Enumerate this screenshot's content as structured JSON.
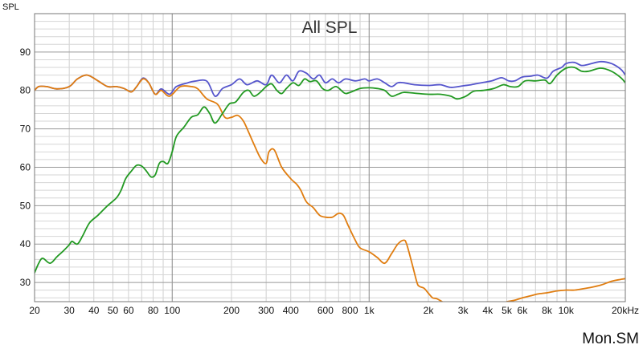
{
  "chart_data": {
    "type": "line",
    "title": "All SPL",
    "ylabel": "SPL",
    "xlabel": "",
    "x_scale": "log",
    "xlim": [
      20,
      20000
    ],
    "ylim": [
      25,
      100
    ],
    "grid": true,
    "watermark": "Mon.SM",
    "y_ticks": [
      30,
      40,
      50,
      60,
      70,
      80,
      90
    ],
    "x_ticks": [
      {
        "v": 20,
        "label": "20"
      },
      {
        "v": 30,
        "label": "30"
      },
      {
        "v": 40,
        "label": "40"
      },
      {
        "v": 50,
        "label": "50"
      },
      {
        "v": 60,
        "label": "60"
      },
      {
        "v": 80,
        "label": "80"
      },
      {
        "v": 100,
        "label": "100"
      },
      {
        "v": 200,
        "label": "200"
      },
      {
        "v": 300,
        "label": "300"
      },
      {
        "v": 400,
        "label": "400"
      },
      {
        "v": 600,
        "label": "600"
      },
      {
        "v": 800,
        "label": "800"
      },
      {
        "v": 1000,
        "label": "1k"
      },
      {
        "v": 2000,
        "label": "2k"
      },
      {
        "v": 3000,
        "label": "3k"
      },
      {
        "v": 4000,
        "label": "4k"
      },
      {
        "v": 5000,
        "label": "5k"
      },
      {
        "v": 6000,
        "label": "6k"
      },
      {
        "v": 8000,
        "label": "8k"
      },
      {
        "v": 10000,
        "label": "10k"
      },
      {
        "v": 20000,
        "label": "20kHz"
      }
    ],
    "series": [
      {
        "color": "#5555cc",
        "points": [
          [
            20,
            80
          ],
          [
            21,
            81
          ],
          [
            23,
            81
          ],
          [
            26,
            80.4
          ],
          [
            30,
            81
          ],
          [
            33,
            83
          ],
          [
            37,
            84
          ],
          [
            42,
            82.5
          ],
          [
            47,
            81
          ],
          [
            52,
            81
          ],
          [
            57,
            80.5
          ],
          [
            62,
            79.6
          ],
          [
            66,
            81
          ],
          [
            71,
            83.2
          ],
          [
            76,
            82
          ],
          [
            82,
            79
          ],
          [
            88,
            80.4
          ],
          [
            97,
            79
          ],
          [
            105,
            81
          ],
          [
            120,
            82
          ],
          [
            130,
            82.4
          ],
          [
            150,
            82.4
          ],
          [
            165,
            78.5
          ],
          [
            180,
            80.5
          ],
          [
            200,
            81.5
          ],
          [
            220,
            83
          ],
          [
            240,
            81.5
          ],
          [
            270,
            82.5
          ],
          [
            300,
            81.5
          ],
          [
            320,
            84
          ],
          [
            350,
            82
          ],
          [
            380,
            84
          ],
          [
            410,
            82.5
          ],
          [
            440,
            85
          ],
          [
            480,
            84.5
          ],
          [
            520,
            83
          ],
          [
            560,
            84
          ],
          [
            600,
            82
          ],
          [
            650,
            83
          ],
          [
            700,
            82
          ],
          [
            760,
            83
          ],
          [
            850,
            82.5
          ],
          [
            950,
            83
          ],
          [
            1000,
            82.5
          ],
          [
            1100,
            83
          ],
          [
            1200,
            82
          ],
          [
            1300,
            81
          ],
          [
            1400,
            82
          ],
          [
            1500,
            82
          ],
          [
            1700,
            81.5
          ],
          [
            2000,
            81.3
          ],
          [
            2300,
            81.5
          ],
          [
            2600,
            80.8
          ],
          [
            3000,
            81.2
          ],
          [
            3300,
            81.5
          ],
          [
            3700,
            82
          ],
          [
            4200,
            82.5
          ],
          [
            4700,
            83.3
          ],
          [
            5100,
            82.5
          ],
          [
            5500,
            82.5
          ],
          [
            6000,
            83.5
          ],
          [
            6600,
            83.7
          ],
          [
            7200,
            84
          ],
          [
            8000,
            83.2
          ],
          [
            8600,
            85
          ],
          [
            9500,
            86
          ],
          [
            10000,
            87
          ],
          [
            11000,
            87.3
          ],
          [
            12000,
            86.5
          ],
          [
            13000,
            86.8
          ],
          [
            15000,
            87.5
          ],
          [
            17000,
            87
          ],
          [
            19000,
            85.5
          ],
          [
            20000,
            84
          ]
        ]
      },
      {
        "color": "#e07d10",
        "points": [
          [
            20,
            80
          ],
          [
            21,
            81
          ],
          [
            23,
            81
          ],
          [
            26,
            80.4
          ],
          [
            30,
            81
          ],
          [
            33,
            83
          ],
          [
            37,
            84
          ],
          [
            42,
            82.5
          ],
          [
            47,
            81
          ],
          [
            52,
            81
          ],
          [
            57,
            80.5
          ],
          [
            62,
            79.6
          ],
          [
            66,
            81
          ],
          [
            71,
            83
          ],
          [
            76,
            82
          ],
          [
            82,
            79
          ],
          [
            88,
            80
          ],
          [
            97,
            78.5
          ],
          [
            110,
            81
          ],
          [
            125,
            81
          ],
          [
            135,
            80.4
          ],
          [
            150,
            77.8
          ],
          [
            170,
            76.4
          ],
          [
            185,
            73
          ],
          [
            200,
            73
          ],
          [
            215,
            73.5
          ],
          [
            230,
            72
          ],
          [
            245,
            69
          ],
          [
            260,
            66
          ],
          [
            280,
            62.5
          ],
          [
            300,
            61
          ],
          [
            310,
            64
          ],
          [
            330,
            64.5
          ],
          [
            360,
            60
          ],
          [
            400,
            57
          ],
          [
            430,
            55.5
          ],
          [
            450,
            54
          ],
          [
            480,
            51
          ],
          [
            520,
            49.5
          ],
          [
            560,
            47.5
          ],
          [
            600,
            47
          ],
          [
            650,
            47
          ],
          [
            700,
            48
          ],
          [
            740,
            47.5
          ],
          [
            780,
            45
          ],
          [
            850,
            41
          ],
          [
            900,
            39
          ],
          [
            1000,
            38
          ],
          [
            1100,
            36.5
          ],
          [
            1200,
            35
          ],
          [
            1300,
            37.5
          ],
          [
            1400,
            40
          ],
          [
            1500,
            41
          ],
          [
            1550,
            40
          ],
          [
            1650,
            35
          ],
          [
            1750,
            30
          ],
          [
            1800,
            29
          ],
          [
            1900,
            28.5
          ],
          [
            2000,
            27.2
          ],
          [
            2100,
            26
          ],
          [
            2200,
            25.8
          ],
          [
            2350,
            25
          ]
        ]
      },
      {
        "color": "#e07d10",
        "points": [
          [
            5000,
            25
          ],
          [
            5500,
            25.4
          ],
          [
            6000,
            26
          ],
          [
            6600,
            26.5
          ],
          [
            7200,
            27
          ],
          [
            8000,
            27.3
          ],
          [
            9000,
            27.8
          ],
          [
            10000,
            28
          ],
          [
            11000,
            28
          ],
          [
            12000,
            28.3
          ],
          [
            13000,
            28.6
          ],
          [
            15000,
            29.3
          ],
          [
            17000,
            30.3
          ],
          [
            19000,
            30.8
          ],
          [
            20000,
            31
          ]
        ]
      },
      {
        "color": "#229922",
        "points": [
          [
            20,
            32.5
          ],
          [
            21,
            35
          ],
          [
            22,
            36.3
          ],
          [
            24,
            35
          ],
          [
            26,
            36.7
          ],
          [
            28,
            38.2
          ],
          [
            30,
            39.8
          ],
          [
            31,
            40.7
          ],
          [
            33,
            40
          ],
          [
            35,
            42
          ],
          [
            38,
            45.5
          ],
          [
            42,
            47.5
          ],
          [
            47,
            50
          ],
          [
            52,
            52
          ],
          [
            55,
            54
          ],
          [
            58,
            57
          ],
          [
            62,
            59
          ],
          [
            66,
            60.5
          ],
          [
            70,
            60.3
          ],
          [
            74,
            59
          ],
          [
            78,
            57.5
          ],
          [
            82,
            58
          ],
          [
            86,
            61
          ],
          [
            90,
            61.5
          ],
          [
            95,
            61
          ],
          [
            100,
            64
          ],
          [
            105,
            68
          ],
          [
            115,
            70.5
          ],
          [
            125,
            73
          ],
          [
            135,
            73.7
          ],
          [
            145,
            75.7
          ],
          [
            155,
            74
          ],
          [
            165,
            71.5
          ],
          [
            180,
            74
          ],
          [
            195,
            76.5
          ],
          [
            210,
            77
          ],
          [
            230,
            79.5
          ],
          [
            245,
            80
          ],
          [
            260,
            78.5
          ],
          [
            280,
            79.5
          ],
          [
            300,
            81
          ],
          [
            320,
            81.7
          ],
          [
            340,
            80
          ],
          [
            360,
            79.2
          ],
          [
            380,
            80.5
          ],
          [
            410,
            82
          ],
          [
            440,
            81.3
          ],
          [
            470,
            83
          ],
          [
            500,
            82.3
          ],
          [
            540,
            82.5
          ],
          [
            580,
            80.5
          ],
          [
            620,
            80
          ],
          [
            680,
            81
          ],
          [
            750,
            79.3
          ],
          [
            800,
            79.5
          ],
          [
            900,
            80.5
          ],
          [
            1000,
            80.7
          ],
          [
            1100,
            80.5
          ],
          [
            1200,
            80
          ],
          [
            1300,
            78.5
          ],
          [
            1400,
            79
          ],
          [
            1500,
            79.5
          ],
          [
            1700,
            79.3
          ],
          [
            2000,
            79
          ],
          [
            2300,
            79
          ],
          [
            2600,
            78.5
          ],
          [
            2800,
            77.8
          ],
          [
            3100,
            78.5
          ],
          [
            3400,
            79.8
          ],
          [
            3800,
            80
          ],
          [
            4300,
            80.5
          ],
          [
            4800,
            81.5
          ],
          [
            5200,
            81
          ],
          [
            5700,
            81
          ],
          [
            6200,
            82.5
          ],
          [
            7000,
            82.5
          ],
          [
            7800,
            82.7
          ],
          [
            8300,
            81.8
          ],
          [
            9000,
            84
          ],
          [
            10000,
            85.8
          ],
          [
            11000,
            86
          ],
          [
            12000,
            85
          ],
          [
            13000,
            85
          ],
          [
            15000,
            85.8
          ],
          [
            17000,
            85
          ],
          [
            19000,
            83.3
          ],
          [
            20000,
            82
          ]
        ]
      }
    ]
  }
}
